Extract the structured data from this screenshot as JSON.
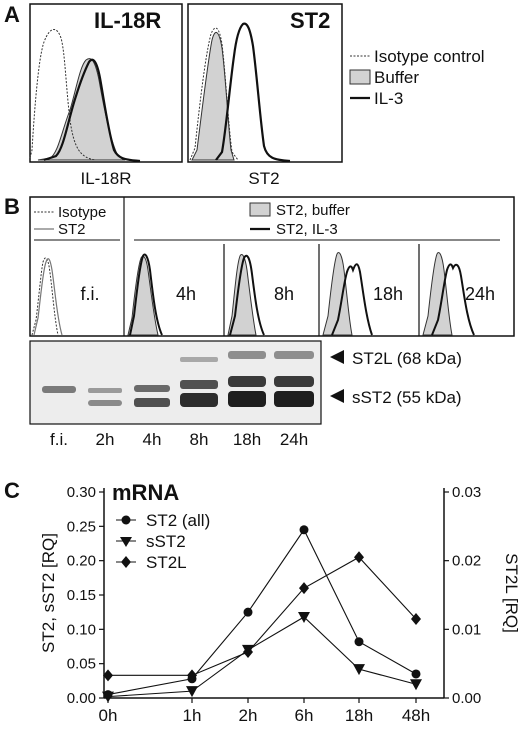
{
  "panel_a": {
    "letter": "A",
    "histograms": [
      {
        "title": "IL-18R",
        "xlabel": "IL-18R"
      },
      {
        "title": "ST2",
        "xlabel": "ST2"
      }
    ],
    "legend": [
      "Isotype control",
      "Buffer",
      "IL-3"
    ]
  },
  "panel_b": {
    "letter": "B",
    "legend_left": [
      "Isotype",
      "ST2"
    ],
    "legend_right": [
      "ST2, buffer",
      "ST2, IL-3"
    ],
    "histogram_labels": [
      "f.i.",
      "4h",
      "8h",
      "18h",
      "24h"
    ],
    "blot_lanes": [
      "f.i.",
      "2h",
      "4h",
      "8h",
      "18h",
      "24h"
    ],
    "band_labels": [
      "ST2L (68 kDa)",
      "sST2 (55 kDa)"
    ]
  },
  "panel_c": {
    "letter": "C",
    "title": "mRNA",
    "y_left_label": "ST2, sST2 [RQ]",
    "y_right_label": "ST2L [RQ]",
    "y_left_ticks": [
      "0.00",
      "0.05",
      "0.10",
      "0.15",
      "0.20",
      "0.25",
      "0.30"
    ],
    "y_right_ticks": [
      "0.00",
      "0.01",
      "0.02",
      "0.03"
    ],
    "x_ticks": [
      "0h",
      "1h",
      "2h",
      "6h",
      "18h",
      "48h"
    ],
    "legend": [
      "ST2 (all)",
      "sST2",
      "ST2L"
    ]
  },
  "chart_data": {
    "type": "line",
    "title": "mRNA",
    "categories": [
      "0h",
      "1h",
      "2h",
      "6h",
      "18h",
      "48h"
    ],
    "ylabel": "ST2, sST2 [RQ]",
    "ylim": [
      0,
      0.3
    ],
    "y2label": "ST2L [RQ]",
    "y2lim": [
      0,
      0.03
    ],
    "series": [
      {
        "name": "ST2 (all)",
        "marker": "circle",
        "axis": "left",
        "values": [
          0.005,
          0.028,
          0.125,
          0.245,
          0.082,
          0.035
        ]
      },
      {
        "name": "sST2",
        "marker": "triangle-down",
        "axis": "left",
        "values": [
          0.002,
          0.01,
          0.07,
          0.118,
          0.042,
          0.02
        ]
      },
      {
        "name": "ST2L",
        "marker": "diamond",
        "axis": "right",
        "values": [
          0.0033,
          0.0033,
          0.0067,
          0.016,
          0.0205,
          0.0115
        ]
      }
    ],
    "legend_position": "top-left",
    "grid": false
  }
}
